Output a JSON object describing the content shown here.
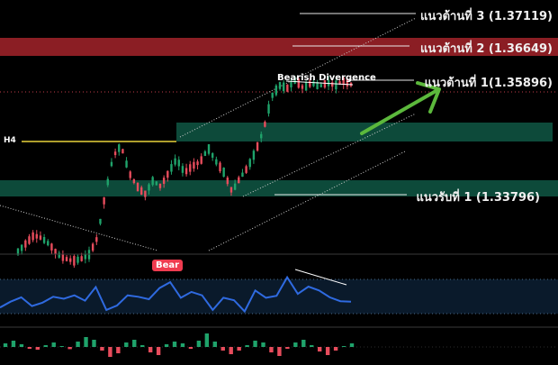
{
  "levels": {
    "resistance_3": "แนวต้านที่ 3 (1.37119)",
    "resistance_2": "แนวต้านที่ 2 (1.36649)",
    "resistance_1": "แนวต้านที่ 1(1.35896)",
    "support_1": "แนวรับที่ 1 (1.33796)"
  },
  "labels": {
    "timeframe": "H4",
    "bear_badge": "Bear",
    "divergence": "Bearish Divergence"
  },
  "colors": {
    "background": "#000000",
    "resistance_zone": "#8b1e24",
    "support_zone": "#0d4a3a",
    "arrow": "#5cb83c",
    "h4_line": "#e7d23a",
    "rsi_line": "#2f6ae0",
    "bull_bar": "#1fa36b",
    "bear_bar": "#e74c5c"
  },
  "chart_data": {
    "type": "candlestick",
    "price_levels": {
      "resistance_3": 1.37119,
      "resistance_2": 1.36649,
      "resistance_1": 1.35896,
      "support_1": 1.33796
    },
    "price_path": [
      1.3275,
      1.329,
      1.3305,
      1.33,
      1.3288,
      1.327,
      1.3262,
      1.3258,
      1.3262,
      1.327,
      1.33,
      1.338,
      1.345,
      1.347,
      1.342,
      1.3395,
      1.338,
      1.3405,
      1.3395,
      1.342,
      1.3445,
      1.342,
      1.3432,
      1.344,
      1.3465,
      1.344,
      1.342,
      1.3385,
      1.341,
      1.343,
      1.346,
      1.35,
      1.356,
      1.358,
      1.3575,
      1.359,
      1.3575,
      1.3585,
      1.3578,
      1.3585,
      1.358,
      1.3588,
      1.3582
    ],
    "rsi": [
      0.2,
      0.32,
      0.41,
      0.23,
      0.3,
      0.42,
      0.38,
      0.45,
      0.34,
      0.62,
      0.15,
      0.24,
      0.45,
      0.42,
      0.37,
      0.6,
      0.72,
      0.4,
      0.52,
      0.45,
      0.15,
      0.4,
      0.35,
      0.12,
      0.55,
      0.4,
      0.44,
      0.82,
      0.48,
      0.63,
      0.55,
      0.41,
      0.33,
      0.32
    ],
    "momentum": [
      0.2,
      0.35,
      0.15,
      -0.1,
      -0.15,
      0.1,
      0.25,
      0.05,
      -0.12,
      0.3,
      0.55,
      0.4,
      -0.2,
      -0.55,
      -0.35,
      0.25,
      0.4,
      0.1,
      -0.3,
      -0.45,
      0.15,
      0.3,
      0.2,
      -0.1,
      0.35,
      0.75,
      0.3,
      -0.2,
      -0.4,
      -0.2,
      0.1,
      0.35,
      0.25,
      -0.3,
      -0.5,
      -0.1,
      0.25,
      0.4,
      0.1,
      -0.25,
      -0.45,
      -0.2,
      0.05,
      0.2
    ]
  }
}
